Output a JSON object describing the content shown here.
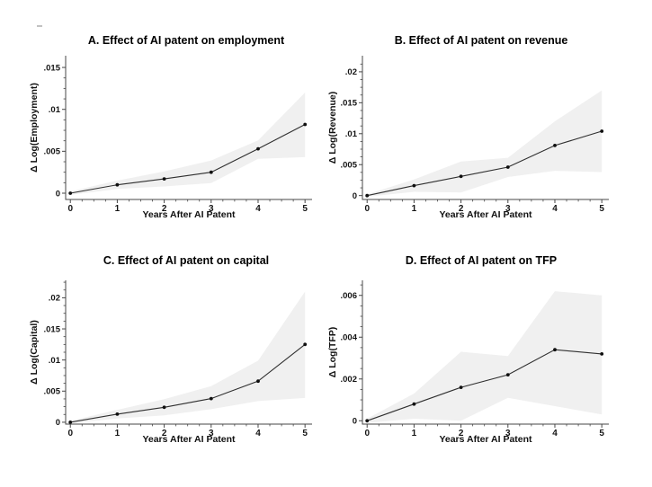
{
  "figure": {
    "background": "#ffffff",
    "band_color": "#f0f0f0",
    "line_color": "#2f2f2f",
    "marker_color": "#0f0f0f",
    "axis_color": "#474747",
    "text_color": "#141414"
  },
  "chart_data": [
    {
      "type": "line",
      "panel": "A",
      "title": "A. Effect of AI patent on employment",
      "xlabel": "Years After AI Patent",
      "ylabel": "Δ Log(Employment)",
      "x": [
        0,
        1,
        2,
        3,
        4,
        5
      ],
      "values": [
        0,
        0.001,
        0.0017,
        0.0025,
        0.0053,
        0.0082
      ],
      "ci_upper": [
        0.0002,
        0.0015,
        0.0026,
        0.0039,
        0.0063,
        0.012
      ],
      "ci_lower": [
        -0.0002,
        0.0005,
        0.0008,
        0.0012,
        0.0041,
        0.0043
      ],
      "xlim": [
        -0.1,
        5.15
      ],
      "ylim": [
        -0.00075,
        0.0164
      ],
      "xticks": {
        "values": [
          0,
          1,
          2,
          3,
          4,
          5
        ],
        "labels": [
          "0",
          "1",
          "2",
          "3",
          "4",
          "5"
        ]
      },
      "yticks": {
        "values": [
          0,
          0.005,
          0.01,
          0.015
        ],
        "labels": [
          "0",
          ".005",
          ".01",
          ".015"
        ]
      },
      "grid": false,
      "legend": null
    },
    {
      "type": "line",
      "panel": "B",
      "title": "B. Effect of AI patent on revenue",
      "xlabel": "Years After AI Patent",
      "ylabel": "Δ Log(Revenue)",
      "x": [
        0,
        1,
        2,
        3,
        4,
        5
      ],
      "values": [
        0,
        0.0016,
        0.0031,
        0.0046,
        0.0081,
        0.0104
      ],
      "ci_upper": [
        0.0002,
        0.0026,
        0.0055,
        0.0061,
        0.012,
        0.017
      ],
      "ci_lower": [
        -0.0002,
        0.0006,
        0.0005,
        0.003,
        0.004,
        0.0038
      ],
      "xlim": [
        -0.1,
        5.15
      ],
      "ylim": [
        -0.00063,
        0.0226
      ],
      "xticks": {
        "values": [
          0,
          1,
          2,
          3,
          4,
          5
        ],
        "labels": [
          "0",
          "1",
          "2",
          "3",
          "4",
          "5"
        ]
      },
      "yticks": {
        "values": [
          0,
          0.005,
          0.01,
          0.015,
          0.02
        ],
        "labels": [
          "0",
          ".005",
          ".01",
          ".015",
          ".02"
        ]
      },
      "grid": false,
      "legend": null
    },
    {
      "type": "line",
      "panel": "C",
      "title": "C. Effect of AI patent on capital",
      "xlabel": "Years After AI Patent",
      "ylabel": "Δ Log(Capital)",
      "x": [
        0,
        1,
        2,
        3,
        4,
        5
      ],
      "values": [
        0,
        0.0013,
        0.0024,
        0.0038,
        0.0066,
        0.0125
      ],
      "ci_upper": [
        0.0002,
        0.002,
        0.0037,
        0.0058,
        0.0099,
        0.021
      ],
      "ci_lower": [
        -0.0002,
        0.0006,
        0.0011,
        0.0021,
        0.0034,
        0.0039
      ],
      "xlim": [
        -0.1,
        5.15
      ],
      "ylim": [
        -0.0003,
        0.0228
      ],
      "xticks": {
        "values": [
          0,
          1,
          2,
          3,
          4,
          5
        ],
        "labels": [
          "0",
          "1",
          "2",
          "3",
          "4",
          "5"
        ]
      },
      "yticks": {
        "values": [
          0,
          0.005,
          0.01,
          0.015,
          0.02
        ],
        "labels": [
          "0",
          ".005",
          ".01",
          ".015",
          ".02"
        ]
      },
      "grid": false,
      "legend": null
    },
    {
      "type": "line",
      "panel": "D",
      "title": "D. Effect of AI patent on TFP",
      "xlabel": "Years After AI Patent",
      "ylabel": "Δ Log(TFP)",
      "x": [
        0,
        1,
        2,
        3,
        4,
        5
      ],
      "values": [
        0,
        0.0008,
        0.0016,
        0.0022,
        0.0034,
        0.0032
      ],
      "ci_upper": [
        0.0001,
        0.0013,
        0.0033,
        0.0031,
        0.0062,
        0.006
      ],
      "ci_lower": [
        -0.0001,
        0.0001,
        0,
        0.0011,
        0.0007,
        0.0003
      ],
      "xlim": [
        -0.1,
        5.15
      ],
      "ylim": [
        -0.00016,
        0.00672
      ],
      "xticks": {
        "values": [
          0,
          1,
          2,
          3,
          4,
          5
        ],
        "labels": [
          "0",
          "1",
          "2",
          "3",
          "4",
          "5"
        ]
      },
      "yticks": {
        "values": [
          0,
          0.002,
          0.004,
          0.006
        ],
        "labels": [
          "0",
          ".002",
          ".004",
          ".006"
        ]
      },
      "grid": false,
      "legend": null
    }
  ]
}
